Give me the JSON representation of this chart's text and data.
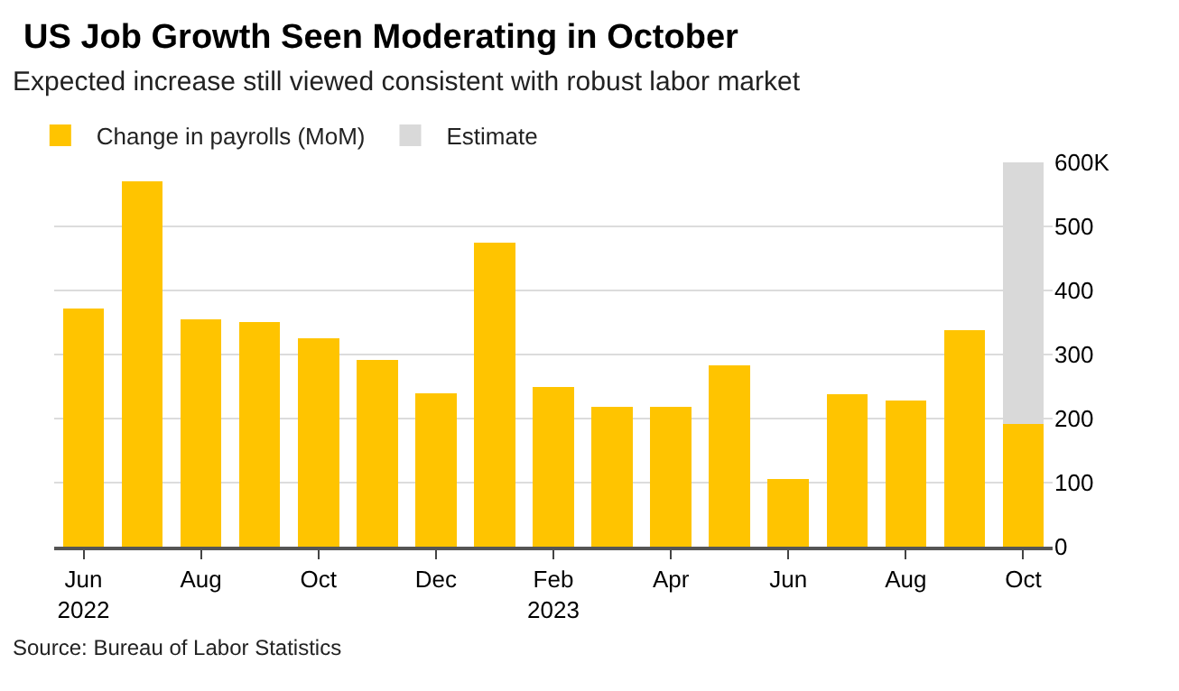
{
  "chart_data": {
    "type": "bar",
    "title": "US Job Growth Seen Moderating in October",
    "subtitle": "Expected increase still viewed consistent with robust labor market",
    "categories": [
      "Jun\n2022",
      null,
      "Aug",
      null,
      "Oct",
      null,
      "Dec",
      null,
      "Feb\n2023",
      null,
      "Apr",
      null,
      "Jun",
      null,
      "Aug",
      null,
      "Oct"
    ],
    "series": [
      {
        "name": "Change in payrolls (MoM)",
        "color": "#ffc400",
        "values": [
          372,
          570,
          355,
          351,
          325,
          291,
          240,
          474,
          249,
          218,
          218,
          283,
          106,
          238,
          228,
          338,
          191
        ]
      },
      {
        "name": "Estimate",
        "color": "#d9d9d9",
        "values": [
          null,
          null,
          null,
          null,
          null,
          null,
          null,
          null,
          null,
          null,
          null,
          null,
          null,
          null,
          null,
          null,
          409
        ]
      }
    ],
    "stacked": true,
    "ylim": [
      0,
      600
    ],
    "yticks": [
      0,
      100,
      200,
      300,
      400,
      500,
      {
        "value": 600,
        "label": "600K"
      }
    ],
    "grid": "y",
    "legend": "top left",
    "annotations": [
      "Source: Bureau of Labor Statistics"
    ]
  }
}
